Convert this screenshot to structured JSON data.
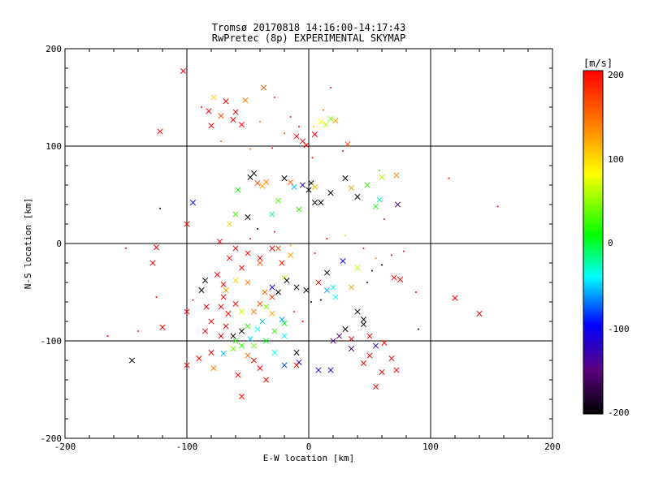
{
  "chart_data": {
    "type": "scatter",
    "title": "Tromsø 20170818  14:16:00-14:17:43",
    "subtitle": "RwPretec (8p) EXPERIMENTAL SKYMAP",
    "xlabel": "E-W location [km]",
    "ylabel": "N-S location [km]",
    "xlim": [
      -200,
      200
    ],
    "ylim": [
      -200,
      200
    ],
    "x_ticks": [
      "-200",
      "-100",
      "0",
      "100",
      "200"
    ],
    "y_ticks": [
      "-200",
      "-100",
      "0",
      "100",
      "200"
    ],
    "grid": true,
    "colorbar": {
      "label": "[m/s]",
      "range": [
        -200,
        200
      ],
      "ticks": [
        "200",
        "100",
        "0",
        "-100",
        "-200"
      ],
      "colormap": "black-purple-blue-cyan-green-yellow-orange-red"
    },
    "marker_types": [
      "cross (x) for larger echoes",
      "dot for small echoes"
    ],
    "points": [
      [
        -103,
        177,
        200,
        "x"
      ],
      [
        -37,
        160,
        160,
        "x"
      ],
      [
        -28,
        150,
        200,
        "d"
      ],
      [
        -52,
        147,
        140,
        "x"
      ],
      [
        -68,
        146,
        200,
        "x"
      ],
      [
        -78,
        150,
        100,
        "x"
      ],
      [
        -60,
        135,
        200,
        "x"
      ],
      [
        -82,
        136,
        200,
        "x"
      ],
      [
        -72,
        131,
        160,
        "x"
      ],
      [
        -88,
        140,
        200,
        "d"
      ],
      [
        -62,
        127,
        200,
        "x"
      ],
      [
        -55,
        122,
        200,
        "x"
      ],
      [
        -80,
        121,
        200,
        "x"
      ],
      [
        -122,
        115,
        200,
        "x"
      ],
      [
        -15,
        130,
        200,
        "d"
      ],
      [
        -8,
        120,
        200,
        "d"
      ],
      [
        -20,
        113,
        160,
        "d"
      ],
      [
        -10,
        110,
        200,
        "x"
      ],
      [
        -5,
        105,
        200,
        "x"
      ],
      [
        5,
        112,
        200,
        "x"
      ],
      [
        -2,
        101,
        200,
        "x"
      ],
      [
        10,
        125,
        80,
        "x"
      ],
      [
        14,
        122,
        60,
        "x"
      ],
      [
        18,
        128,
        40,
        "x"
      ],
      [
        22,
        126,
        120,
        "x"
      ],
      [
        4,
        120,
        100,
        "d"
      ],
      [
        12,
        137,
        150,
        "d"
      ],
      [
        18,
        160,
        200,
        "d"
      ],
      [
        32,
        102,
        160,
        "x"
      ],
      [
        28,
        95,
        200,
        "d"
      ],
      [
        3,
        88,
        200,
        "d"
      ],
      [
        -30,
        98,
        200,
        "d"
      ],
      [
        -48,
        97,
        150,
        "d"
      ],
      [
        -72,
        105,
        160,
        "d"
      ],
      [
        -40,
        125,
        140,
        "d"
      ],
      [
        -48,
        68,
        -200,
        "x"
      ],
      [
        -45,
        72,
        -200,
        "x"
      ],
      [
        -35,
        63,
        140,
        "x"
      ],
      [
        -42,
        62,
        160,
        "x"
      ],
      [
        -38,
        59,
        120,
        "x"
      ],
      [
        -20,
        67,
        -200,
        "x"
      ],
      [
        -15,
        63,
        150,
        "x"
      ],
      [
        -5,
        60,
        -120,
        "x"
      ],
      [
        0,
        55,
        -200,
        "x"
      ],
      [
        2,
        62,
        -200,
        "x"
      ],
      [
        5,
        58,
        110,
        "x"
      ],
      [
        -12,
        58,
        -50,
        "x"
      ],
      [
        18,
        52,
        -200,
        "x"
      ],
      [
        30,
        67,
        -200,
        "x"
      ],
      [
        35,
        57,
        120,
        "x"
      ],
      [
        40,
        48,
        -200,
        "x"
      ],
      [
        48,
        60,
        20,
        "x"
      ],
      [
        58,
        45,
        -20,
        "x"
      ],
      [
        55,
        38,
        20,
        "x"
      ],
      [
        60,
        68,
        60,
        "x"
      ],
      [
        72,
        70,
        140,
        "x"
      ],
      [
        73,
        40,
        -150,
        "x"
      ],
      [
        58,
        75,
        0,
        "d"
      ],
      [
        -58,
        55,
        10,
        "x"
      ],
      [
        -60,
        30,
        20,
        "x"
      ],
      [
        -95,
        42,
        -100,
        "x"
      ],
      [
        -25,
        44,
        30,
        "x"
      ],
      [
        -30,
        30,
        -20,
        "x"
      ],
      [
        -8,
        35,
        20,
        "x"
      ],
      [
        -50,
        27,
        -200,
        "x"
      ],
      [
        -65,
        20,
        100,
        "x"
      ],
      [
        -42,
        15,
        -200,
        "d"
      ],
      [
        5,
        42,
        -200,
        "x"
      ],
      [
        10,
        42,
        -200,
        "x"
      ],
      [
        115,
        67,
        200,
        "d"
      ],
      [
        155,
        38,
        200,
        "d"
      ],
      [
        -122,
        36,
        -200,
        "d"
      ],
      [
        -100,
        20,
        200,
        "x"
      ],
      [
        -150,
        -5,
        200,
        "d"
      ],
      [
        -125,
        -4,
        200,
        "x"
      ],
      [
        -128,
        -20,
        200,
        "x"
      ],
      [
        -73,
        2,
        200,
        "x"
      ],
      [
        -60,
        -5,
        200,
        "x"
      ],
      [
        -50,
        -10,
        200,
        "x"
      ],
      [
        -40,
        -15,
        200,
        "x"
      ],
      [
        -30,
        -5,
        200,
        "x"
      ],
      [
        -25,
        -5,
        160,
        "x"
      ],
      [
        -22,
        -20,
        200,
        "x"
      ],
      [
        -15,
        -12,
        120,
        "x"
      ],
      [
        -20,
        -35,
        60,
        "x"
      ],
      [
        -30,
        -45,
        -100,
        "x"
      ],
      [
        -25,
        -50,
        -200,
        "x"
      ],
      [
        -36,
        -50,
        150,
        "x"
      ],
      [
        -50,
        -40,
        140,
        "x"
      ],
      [
        -60,
        -38,
        100,
        "x"
      ],
      [
        -70,
        -42,
        200,
        "x"
      ],
      [
        -75,
        -32,
        200,
        "x"
      ],
      [
        -85,
        -38,
        -200,
        "x"
      ],
      [
        -88,
        -48,
        -200,
        "x"
      ],
      [
        -70,
        -55,
        200,
        "x"
      ],
      [
        -60,
        -62,
        200,
        "x"
      ],
      [
        -55,
        -70,
        60,
        "x"
      ],
      [
        -66,
        -72,
        200,
        "x"
      ],
      [
        -68,
        -85,
        200,
        "x"
      ],
      [
        -72,
        -95,
        200,
        "x"
      ],
      [
        -62,
        -95,
        -200,
        "x"
      ],
      [
        -55,
        -90,
        -200,
        "x"
      ],
      [
        -60,
        -100,
        20,
        "x"
      ],
      [
        -55,
        -105,
        20,
        "x"
      ],
      [
        -62,
        -108,
        40,
        "x"
      ],
      [
        -50,
        -115,
        150,
        "x"
      ],
      [
        -45,
        -120,
        200,
        "x"
      ],
      [
        -40,
        -128,
        200,
        "x"
      ],
      [
        -35,
        -140,
        200,
        "x"
      ],
      [
        -58,
        -135,
        200,
        "x"
      ],
      [
        -55,
        -157,
        200,
        "x"
      ],
      [
        -78,
        -128,
        140,
        "x"
      ],
      [
        -80,
        -112,
        200,
        "x"
      ],
      [
        -90,
        -118,
        200,
        "x"
      ],
      [
        -70,
        -113,
        -50,
        "x"
      ],
      [
        -48,
        -98,
        -50,
        "x"
      ],
      [
        -42,
        -88,
        -40,
        "x"
      ],
      [
        -38,
        -80,
        -50,
        "x"
      ],
      [
        -35,
        -65,
        40,
        "x"
      ],
      [
        -30,
        -72,
        120,
        "x"
      ],
      [
        -22,
        -78,
        -60,
        "x"
      ],
      [
        -20,
        -95,
        -40,
        "x"
      ],
      [
        -28,
        -112,
        -40,
        "x"
      ],
      [
        -20,
        -125,
        -80,
        "x"
      ],
      [
        -10,
        -112,
        -200,
        "x"
      ],
      [
        -8,
        -122,
        -120,
        "x"
      ],
      [
        -2,
        -48,
        -200,
        "x"
      ],
      [
        8,
        -40,
        200,
        "x"
      ],
      [
        15,
        -30,
        -200,
        "x"
      ],
      [
        20,
        -45,
        -40,
        "x"
      ],
      [
        22,
        -55,
        -40,
        "x"
      ],
      [
        15,
        -48,
        -60,
        "x"
      ],
      [
        28,
        -18,
        -100,
        "x"
      ],
      [
        35,
        -45,
        120,
        "x"
      ],
      [
        40,
        -70,
        -200,
        "x"
      ],
      [
        45,
        -78,
        -200,
        "x"
      ],
      [
        45,
        -83,
        -200,
        "x"
      ],
      [
        30,
        -88,
        -200,
        "x"
      ],
      [
        25,
        -95,
        -150,
        "x"
      ],
      [
        35,
        -98,
        200,
        "x"
      ],
      [
        50,
        -95,
        200,
        "x"
      ],
      [
        55,
        -105,
        -120,
        "x"
      ],
      [
        50,
        -115,
        200,
        "x"
      ],
      [
        45,
        -123,
        200,
        "x"
      ],
      [
        62,
        -102,
        200,
        "x"
      ],
      [
        68,
        -118,
        200,
        "x"
      ],
      [
        72,
        -130,
        200,
        "x"
      ],
      [
        60,
        -132,
        200,
        "x"
      ],
      [
        55,
        -147,
        200,
        "x"
      ],
      [
        18,
        -130,
        -120,
        "x"
      ],
      [
        8,
        -130,
        -120,
        "x"
      ],
      [
        35,
        -108,
        -150,
        "x"
      ],
      [
        20,
        -100,
        -150,
        "x"
      ],
      [
        -10,
        -125,
        200,
        "x"
      ],
      [
        -145,
        -120,
        -200,
        "x"
      ],
      [
        -120,
        -86,
        200,
        "x"
      ],
      [
        -100,
        -125,
        200,
        "x"
      ],
      [
        90,
        -88,
        -200,
        "d"
      ],
      [
        120,
        -56,
        200,
        "x"
      ],
      [
        140,
        -72,
        200,
        "x"
      ],
      [
        88,
        -50,
        200,
        "d"
      ],
      [
        70,
        -35,
        200,
        "x"
      ],
      [
        75,
        -37,
        200,
        "x"
      ],
      [
        68,
        -12,
        200,
        "d"
      ],
      [
        -140,
        -90,
        200,
        "d"
      ],
      [
        -165,
        -95,
        200,
        "d"
      ],
      [
        -125,
        -55,
        200,
        "d"
      ],
      [
        -100,
        -70,
        200,
        "x"
      ],
      [
        -84,
        -65,
        200,
        "x"
      ],
      [
        -95,
        -58,
        200,
        "d"
      ],
      [
        -45,
        -105,
        40,
        "x"
      ],
      [
        -35,
        -100,
        0,
        "x"
      ],
      [
        -28,
        -90,
        20,
        "x"
      ],
      [
        -20,
        -82,
        0,
        "x"
      ],
      [
        -50,
        -85,
        20,
        "x"
      ],
      [
        -40,
        -62,
        160,
        "x"
      ],
      [
        -30,
        -55,
        180,
        "x"
      ],
      [
        -45,
        -70,
        140,
        "x"
      ],
      [
        -68,
        -48,
        120,
        "x"
      ],
      [
        -72,
        -65,
        200,
        "x"
      ],
      [
        -80,
        -80,
        200,
        "x"
      ],
      [
        -85,
        -90,
        200,
        "x"
      ],
      [
        -12,
        -70,
        200,
        "d"
      ],
      [
        -5,
        -80,
        200,
        "d"
      ],
      [
        2,
        -60,
        -200,
        "d"
      ],
      [
        10,
        -58,
        -200,
        "d"
      ],
      [
        48,
        -40,
        -200,
        "d"
      ],
      [
        52,
        -28,
        -200,
        "d"
      ],
      [
        60,
        -22,
        -200,
        "d"
      ],
      [
        55,
        -15,
        140,
        "d"
      ],
      [
        -18,
        -38,
        -200,
        "x"
      ],
      [
        -10,
        -45,
        -200,
        "x"
      ],
      [
        -40,
        -20,
        160,
        "x"
      ],
      [
        -55,
        -25,
        200,
        "x"
      ],
      [
        -65,
        -15,
        200,
        "x"
      ],
      [
        -48,
        5,
        200,
        "d"
      ],
      [
        -28,
        12,
        200,
        "d"
      ],
      [
        -15,
        -2,
        120,
        "d"
      ],
      [
        5,
        -10,
        200,
        "d"
      ],
      [
        15,
        5,
        200,
        "d"
      ],
      [
        30,
        8,
        100,
        "d"
      ],
      [
        45,
        -5,
        200,
        "d"
      ],
      [
        62,
        25,
        200,
        "d"
      ],
      [
        78,
        -8,
        200,
        "d"
      ],
      [
        40,
        -25,
        60,
        "x"
      ]
    ]
  }
}
